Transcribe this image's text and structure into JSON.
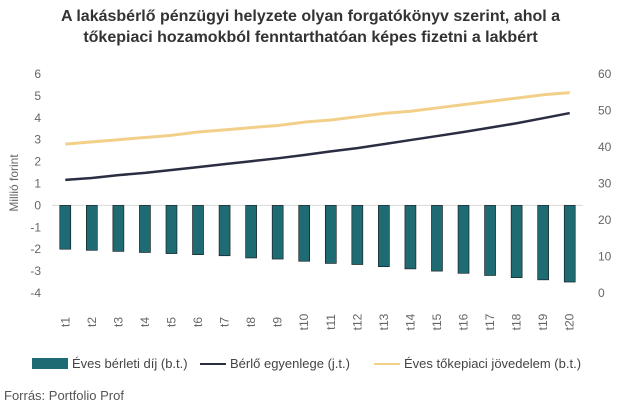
{
  "title_lines": [
    "A lakásbérlő pénzügyi helyzete olyan forgatókönyv szerint, ahol a",
    "tőkepiaci hozamokból fenntarthatóan képes fizetni a lakbért"
  ],
  "source": "Forrás: Portfolio Prof",
  "colors": {
    "bar": "#1f6b73",
    "balance": "#2b2d42",
    "income": "#f2d089",
    "axis": "#d9d9d9",
    "text": "#666666"
  },
  "chart_data": {
    "type": "bar+line",
    "categories": [
      "t1",
      "t2",
      "t3",
      "t4",
      "t5",
      "t6",
      "t7",
      "t8",
      "t9",
      "t10",
      "t11",
      "t12",
      "t13",
      "t14",
      "t15",
      "t16",
      "t17",
      "t18",
      "t19",
      "t20"
    ],
    "ylabel_left": "Millió forint",
    "y_left_range": [
      -4,
      6
    ],
    "y_left_ticks": [
      -4,
      -3,
      -2,
      -1,
      0,
      1,
      2,
      3,
      4,
      5,
      6
    ],
    "y_right_range": [
      0,
      60
    ],
    "y_right_ticks": [
      0,
      10,
      20,
      30,
      40,
      50,
      60
    ],
    "series": [
      {
        "name": "Éves bérleti díj (b.t.)",
        "type": "bar",
        "axis": "left",
        "values": [
          -2.0,
          -2.05,
          -2.1,
          -2.15,
          -2.2,
          -2.25,
          -2.3,
          -2.4,
          -2.45,
          -2.55,
          -2.65,
          -2.7,
          -2.8,
          -2.9,
          -3.0,
          -3.1,
          -3.2,
          -3.3,
          -3.4,
          -3.5
        ]
      },
      {
        "name": "Bérlő egyenlege (j.t.)",
        "type": "line",
        "axis": "right",
        "values": [
          31,
          31.5,
          32.3,
          32.9,
          33.7,
          34.5,
          35.3,
          36.1,
          36.9,
          37.8,
          38.8,
          39.7,
          40.8,
          41.9,
          43.0,
          44.1,
          45.3,
          46.5,
          47.9,
          49.3
        ]
      },
      {
        "name": "Éves tőkepiaci jövedelem (b.t.)",
        "type": "line",
        "axis": "left",
        "values": [
          2.8,
          2.9,
          3.0,
          3.1,
          3.2,
          3.35,
          3.45,
          3.55,
          3.65,
          3.8,
          3.9,
          4.05,
          4.2,
          4.3,
          4.45,
          4.6,
          4.75,
          4.9,
          5.05,
          5.15
        ]
      }
    ]
  }
}
